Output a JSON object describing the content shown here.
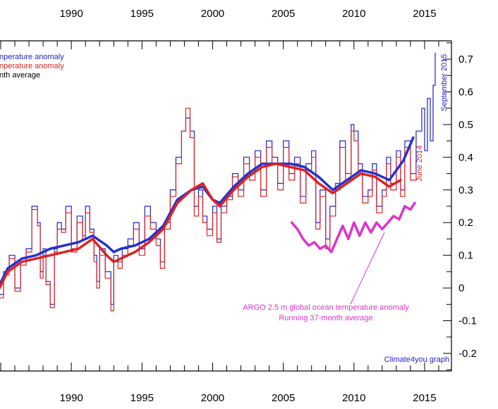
{
  "chart_data": {
    "type": "line",
    "xlim": [
      1984.8,
      2016.9
    ],
    "ylim": [
      -0.23,
      0.76
    ],
    "x_ticks": [
      1990,
      1995,
      2000,
      2005,
      2010,
      2015
    ],
    "x_tick_labels": [
      "1990",
      "1995",
      "2000",
      "2005",
      "2010",
      "2015"
    ],
    "y_ticks": [
      -0.2,
      -0.1,
      0,
      0.1,
      0.2,
      0.3,
      0.4,
      0.5,
      0.6,
      0.7
    ],
    "y_tick_labels": [
      "-0.2",
      "-0.1",
      "0",
      "0.1",
      "0.2",
      "0.3",
      "0.4",
      "0.5",
      "0.6",
      "0.7"
    ],
    "legend": {
      "placement": "top-left",
      "entries": [
        {
          "label": "nperature anomaly",
          "color": "#2222cc"
        },
        {
          "label": "nperature anomaly",
          "color": "#dd2222"
        },
        {
          "label": "nth average",
          "color": "#000000"
        }
      ]
    },
    "annotations": {
      "september_2015": "September 2015",
      "june_2014": "June 2014",
      "argo_line1": "ARGO 2.5 m global ocean temperature anomaly",
      "argo_line2": "Running 37-month average",
      "credit": "Climate4you graph"
    },
    "series": [
      {
        "color": "#2222cc",
        "style": "monthly-step",
        "x": [
          1984.8,
          1985.2,
          1985.6,
          1986.0,
          1986.4,
          1986.8,
          1987.2,
          1987.6,
          1987.8,
          1988.0,
          1988.2,
          1988.5,
          1988.8,
          1989.0,
          1989.3,
          1989.6,
          1990.0,
          1990.4,
          1990.8,
          1991.0,
          1991.3,
          1991.6,
          1991.8,
          1992.0,
          1992.4,
          1992.8,
          1993.0,
          1993.3,
          1993.6,
          1994.0,
          1994.4,
          1994.8,
          1995.2,
          1995.6,
          1996.0,
          1996.3,
          1996.6,
          1997.0,
          1997.4,
          1997.8,
          1998.1,
          1998.4,
          1998.7,
          1999.0,
          1999.3,
          1999.6,
          2000.0,
          2000.3,
          2000.6,
          2001.0,
          2001.4,
          2001.8,
          2002.2,
          2002.6,
          2003.0,
          2003.4,
          2003.8,
          2004.2,
          2004.6,
          2005.0,
          2005.4,
          2005.8,
          2006.2,
          2006.6,
          2007.0,
          2007.3,
          2007.6,
          2008.0,
          2008.3,
          2008.7,
          2009.0,
          2009.4,
          2009.8,
          2010.0,
          2010.3,
          2010.6,
          2011.0,
          2011.3,
          2011.6,
          2012.0,
          2012.3,
          2012.6,
          2013.0,
          2013.3,
          2013.6,
          2014.0,
          2014.4,
          2014.8,
          2015.0,
          2015.2,
          2015.4,
          2015.6,
          2015.75
        ],
        "values": [
          -0.02,
          0.05,
          0.1,
          0.0,
          0.08,
          0.12,
          0.25,
          0.2,
          0.05,
          0.12,
          0.02,
          -0.05,
          0.12,
          0.2,
          0.18,
          0.25,
          0.12,
          0.22,
          0.16,
          0.25,
          0.18,
          0.1,
          0.02,
          0.12,
          0.05,
          -0.05,
          0.1,
          0.08,
          0.12,
          0.15,
          0.2,
          0.12,
          0.25,
          0.2,
          0.15,
          0.08,
          0.2,
          0.3,
          0.4,
          0.48,
          0.52,
          0.48,
          0.25,
          0.3,
          0.22,
          0.18,
          0.25,
          0.15,
          0.25,
          0.28,
          0.35,
          0.3,
          0.4,
          0.35,
          0.42,
          0.3,
          0.45,
          0.4,
          0.32,
          0.45,
          0.35,
          0.4,
          0.28,
          0.38,
          0.42,
          0.2,
          0.3,
          0.15,
          0.25,
          0.32,
          0.45,
          0.35,
          0.5,
          0.48,
          0.38,
          0.28,
          0.3,
          0.38,
          0.25,
          0.3,
          0.4,
          0.32,
          0.42,
          0.3,
          0.45,
          0.35,
          0.48,
          0.55,
          0.42,
          0.58,
          0.45,
          0.62,
          0.72
        ]
      },
      {
        "color": "#dd2222",
        "style": "monthly-step",
        "x": [
          1984.8,
          1985.2,
          1985.6,
          1986.0,
          1986.4,
          1986.8,
          1987.2,
          1987.6,
          1987.8,
          1988.0,
          1988.2,
          1988.5,
          1988.8,
          1989.0,
          1989.3,
          1989.6,
          1990.0,
          1990.4,
          1990.8,
          1991.0,
          1991.3,
          1991.6,
          1991.8,
          1992.0,
          1992.4,
          1992.8,
          1993.0,
          1993.3,
          1993.6,
          1994.0,
          1994.4,
          1994.8,
          1995.2,
          1995.6,
          1996.0,
          1996.3,
          1996.6,
          1997.0,
          1997.4,
          1997.8,
          1998.1,
          1998.4,
          1998.7,
          1999.0,
          1999.3,
          1999.6,
          2000.0,
          2000.3,
          2000.6,
          2001.0,
          2001.4,
          2001.8,
          2002.2,
          2002.6,
          2003.0,
          2003.4,
          2003.8,
          2004.2,
          2004.6,
          2005.0,
          2005.4,
          2005.8,
          2006.2,
          2006.6,
          2007.0,
          2007.3,
          2007.6,
          2008.0,
          2008.3,
          2008.7,
          2009.0,
          2009.4,
          2009.8,
          2010.0,
          2010.3,
          2010.6,
          2011.0,
          2011.3,
          2011.6,
          2012.0,
          2012.3,
          2012.6,
          2013.0,
          2013.3,
          2013.6,
          2014.0,
          2014.4
        ],
        "values": [
          -0.03,
          0.04,
          0.09,
          -0.01,
          0.07,
          0.11,
          0.24,
          0.19,
          0.03,
          0.1,
          0.01,
          -0.06,
          0.11,
          0.18,
          0.17,
          0.23,
          0.11,
          0.2,
          0.15,
          0.23,
          0.17,
          0.08,
          0.0,
          0.1,
          0.03,
          -0.07,
          0.08,
          0.06,
          0.1,
          0.13,
          0.18,
          0.1,
          0.22,
          0.18,
          0.13,
          0.06,
          0.18,
          0.28,
          0.38,
          0.48,
          0.55,
          0.46,
          0.22,
          0.28,
          0.2,
          0.16,
          0.23,
          0.14,
          0.23,
          0.27,
          0.34,
          0.28,
          0.38,
          0.33,
          0.4,
          0.28,
          0.43,
          0.38,
          0.3,
          0.43,
          0.33,
          0.38,
          0.26,
          0.36,
          0.4,
          0.18,
          0.28,
          0.12,
          0.22,
          0.3,
          0.43,
          0.33,
          0.48,
          0.45,
          0.36,
          0.26,
          0.28,
          0.36,
          0.23,
          0.28,
          0.38,
          0.3,
          0.4,
          0.28,
          0.43,
          0.33,
          0.35
        ]
      },
      {
        "color": "#2233cc",
        "style": "smooth-thick",
        "x": [
          1984.8,
          1985.5,
          1986.5,
          1987.5,
          1988.5,
          1989.5,
          1990.5,
          1991.5,
          1992.5,
          1993.0,
          1993.5,
          1994.5,
          1995.5,
          1996.5,
          1997.5,
          1998.5,
          1999.3,
          2000.0,
          2000.5,
          2001.5,
          2002.5,
          2003.5,
          2004.5,
          2005.5,
          2006.5,
          2007.5,
          2008.5,
          2009.5,
          2010.5,
          2011.5,
          2012.5,
          2013.5,
          2014.2
        ],
        "values": [
          0.0,
          0.06,
          0.09,
          0.1,
          0.12,
          0.13,
          0.14,
          0.16,
          0.13,
          0.11,
          0.12,
          0.13,
          0.15,
          0.19,
          0.27,
          0.3,
          0.31,
          0.27,
          0.26,
          0.31,
          0.35,
          0.38,
          0.38,
          0.38,
          0.37,
          0.34,
          0.3,
          0.33,
          0.36,
          0.35,
          0.33,
          0.39,
          0.46
        ]
      },
      {
        "color": "#dd2222",
        "style": "smooth-thick",
        "x": [
          1984.8,
          1985.5,
          1986.5,
          1987.5,
          1988.5,
          1989.5,
          1990.5,
          1991.5,
          1992.5,
          1993.0,
          1993.5,
          1994.5,
          1995.5,
          1996.5,
          1997.5,
          1998.5,
          1999.3,
          2000.0,
          2000.5,
          2001.5,
          2002.5,
          2003.5,
          2004.5,
          2005.5,
          2006.5,
          2007.5,
          2008.5,
          2009.5,
          2010.5,
          2011.5,
          2012.5,
          2013.3
        ],
        "values": [
          -0.01,
          0.05,
          0.08,
          0.09,
          0.1,
          0.11,
          0.12,
          0.15,
          0.1,
          0.08,
          0.09,
          0.11,
          0.14,
          0.18,
          0.26,
          0.3,
          0.32,
          0.27,
          0.25,
          0.3,
          0.34,
          0.37,
          0.38,
          0.37,
          0.36,
          0.32,
          0.29,
          0.32,
          0.35,
          0.34,
          0.31,
          0.33
        ]
      },
      {
        "color": "#dd33cc",
        "style": "smooth-thick",
        "x": [
          2005.6,
          2006.0,
          2006.4,
          2006.8,
          2007.2,
          2007.6,
          2008.0,
          2008.4,
          2008.8,
          2009.2,
          2009.6,
          2010.0,
          2010.4,
          2010.8,
          2011.2,
          2011.6,
          2012.0,
          2012.4,
          2012.8,
          2013.2,
          2013.6,
          2014.0,
          2014.3
        ],
        "values": [
          0.2,
          0.18,
          0.15,
          0.13,
          0.14,
          0.12,
          0.13,
          0.11,
          0.15,
          0.19,
          0.15,
          0.2,
          0.16,
          0.2,
          0.17,
          0.2,
          0.18,
          0.2,
          0.22,
          0.21,
          0.25,
          0.24,
          0.26
        ]
      }
    ]
  }
}
